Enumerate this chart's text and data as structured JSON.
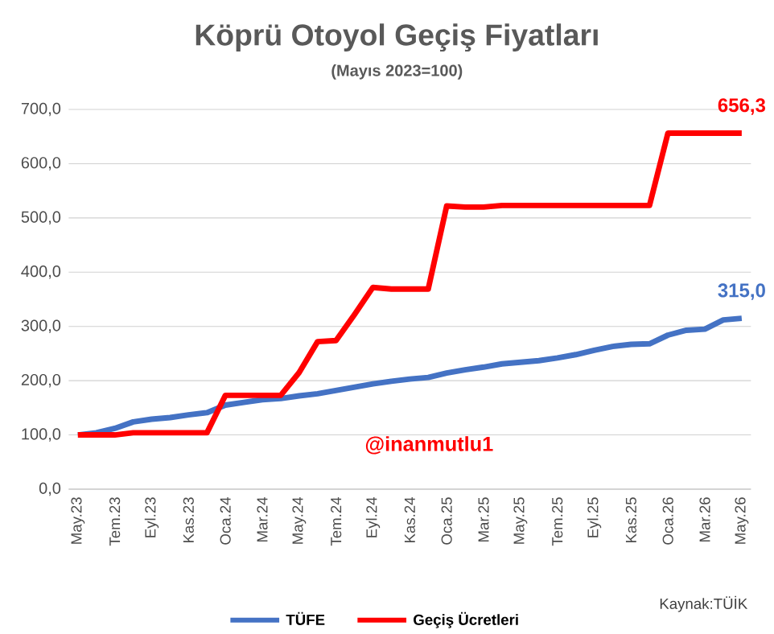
{
  "chart_data": {
    "type": "line",
    "title": "Köprü Otoyol Geçiş Fiyatları",
    "subtitle": "(Mayıs 2023=100)",
    "categories": [
      "May.23",
      null,
      "Tem.23",
      null,
      "Eyl.23",
      null,
      "Kas.23",
      null,
      "Oca.24",
      null,
      "Mar.24",
      null,
      "May.24",
      null,
      "Tem.24",
      null,
      "Eyl.24",
      null,
      "Kas.24",
      null,
      "Oca.25",
      null,
      "Mar.25",
      null,
      "May.25",
      null,
      "Tem.25",
      null,
      "Eyl.25",
      null,
      "Kas.25",
      null,
      "Oca.26",
      null,
      "Mar.26",
      null,
      "May.26"
    ],
    "series": [
      {
        "name": "TÜFE",
        "color": "#4472c4",
        "values": [
          100,
          104,
          112,
          124,
          129,
          132,
          137,
          141,
          155,
          160,
          165,
          167,
          172,
          176,
          182,
          188,
          194,
          199,
          203,
          206,
          214,
          220,
          225,
          231,
          234,
          237,
          242,
          248,
          256,
          263,
          267,
          268,
          284,
          293,
          295,
          312,
          315
        ],
        "value_labels": [
          null,
          null,
          null,
          null,
          null,
          null,
          null,
          null,
          null,
          null,
          null,
          null,
          null,
          null,
          null,
          null,
          null,
          null,
          null,
          null,
          null,
          null,
          null,
          null,
          null,
          null,
          null,
          null,
          null,
          null,
          null,
          null,
          null,
          null,
          null,
          null,
          "315,0"
        ]
      },
      {
        "name": "Geçiş Ücretleri",
        "color": "#ff0000",
        "values": [
          100,
          100,
          100,
          104,
          104,
          104,
          104,
          104,
          173,
          173,
          173,
          173,
          215,
          272,
          274,
          322,
          372,
          369,
          369,
          369,
          522,
          520,
          520,
          523,
          523,
          523,
          523,
          523,
          523,
          523,
          523,
          523,
          656.3,
          656.3,
          656.3,
          656.3,
          656.3
        ],
        "value_labels": [
          null,
          null,
          null,
          null,
          null,
          null,
          null,
          null,
          null,
          null,
          null,
          null,
          null,
          null,
          null,
          null,
          null,
          null,
          null,
          null,
          null,
          null,
          null,
          null,
          null,
          null,
          null,
          null,
          null,
          null,
          null,
          null,
          null,
          null,
          null,
          null,
          "656,3"
        ]
      }
    ],
    "ylim": [
      0,
      700
    ],
    "yticks": [
      {
        "value": 0,
        "label": "0,0"
      },
      {
        "value": 100,
        "label": "100,0"
      },
      {
        "value": 200,
        "label": "200,0"
      },
      {
        "value": 300,
        "label": "300,0"
      },
      {
        "value": 400,
        "label": "400,0"
      },
      {
        "value": 500,
        "label": "500,0"
      },
      {
        "value": 600,
        "label": "600,0"
      },
      {
        "value": 700,
        "label": "700,0"
      }
    ],
    "grid": "y",
    "legend": "bottom",
    "annotations": [
      "@inanmutlu1",
      "Kaynak:TÜİK"
    ]
  }
}
